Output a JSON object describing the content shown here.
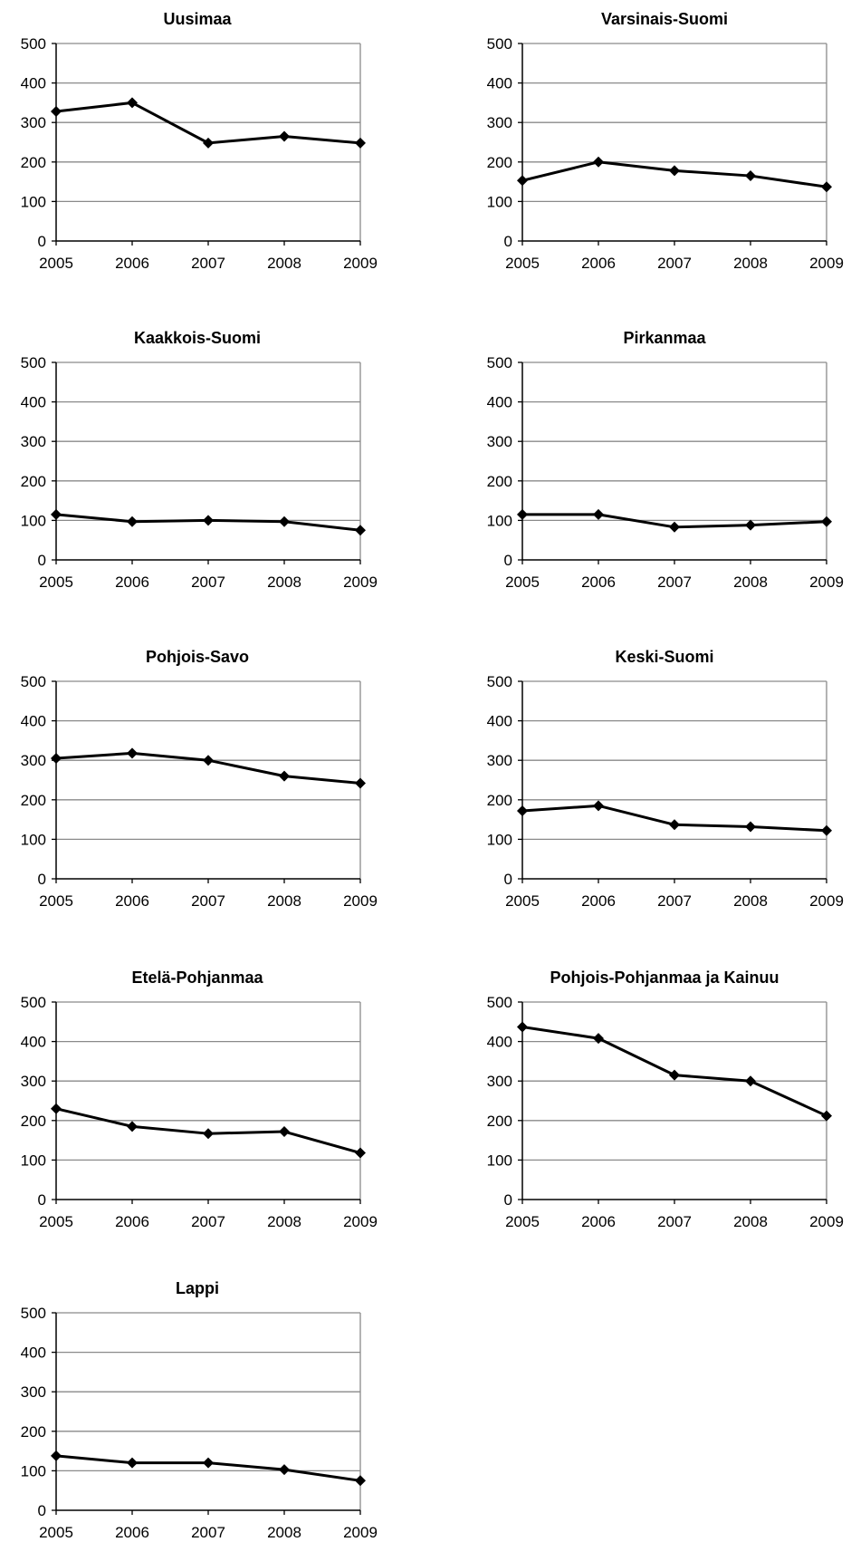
{
  "chart_data": [
    {
      "type": "line",
      "title": "Uusimaa",
      "x": [
        "2005",
        "2006",
        "2007",
        "2008",
        "2009"
      ],
      "series": [
        {
          "values": [
            328,
            350,
            248,
            265,
            248
          ],
          "color": "#000000"
        }
      ],
      "ylim": [
        0,
        500
      ],
      "yticks": [
        "0",
        "100",
        "200",
        "300",
        "400",
        "500"
      ],
      "grid": true,
      "marker": "diamond"
    },
    {
      "type": "line",
      "title": "Varsinais-Suomi",
      "x": [
        "2005",
        "2006",
        "2007",
        "2008",
        "2009"
      ],
      "series": [
        {
          "values": [
            153,
            200,
            178,
            165,
            137
          ],
          "color": "#000000"
        }
      ],
      "ylim": [
        0,
        500
      ],
      "yticks": [
        "0",
        "100",
        "200",
        "300",
        "400",
        "500"
      ],
      "grid": true,
      "marker": "diamond"
    },
    {
      "type": "line",
      "title": "Kaakkois-Suomi",
      "x": [
        "2005",
        "2006",
        "2007",
        "2008",
        "2009"
      ],
      "series": [
        {
          "values": [
            115,
            97,
            100,
            97,
            75
          ],
          "color": "#000000"
        }
      ],
      "ylim": [
        0,
        500
      ],
      "yticks": [
        "0",
        "100",
        "200",
        "300",
        "400",
        "500"
      ],
      "grid": true,
      "marker": "diamond"
    },
    {
      "type": "line",
      "title": "Pirkanmaa",
      "x": [
        "2005",
        "2006",
        "2007",
        "2008",
        "2009"
      ],
      "series": [
        {
          "values": [
            115,
            115,
            83,
            88,
            97
          ],
          "color": "#000000"
        }
      ],
      "ylim": [
        0,
        500
      ],
      "yticks": [
        "0",
        "100",
        "200",
        "300",
        "400",
        "500"
      ],
      "grid": true,
      "marker": "diamond"
    },
    {
      "type": "line",
      "title": "Pohjois-Savo",
      "x": [
        "2005",
        "2006",
        "2007",
        "2008",
        "2009"
      ],
      "series": [
        {
          "values": [
            305,
            318,
            300,
            260,
            242
          ],
          "color": "#000000"
        }
      ],
      "ylim": [
        0,
        500
      ],
      "yticks": [
        "0",
        "100",
        "200",
        "300",
        "400",
        "500"
      ],
      "grid": true,
      "marker": "diamond"
    },
    {
      "type": "line",
      "title": "Keski-Suomi",
      "x": [
        "2005",
        "2006",
        "2007",
        "2008",
        "2009"
      ],
      "series": [
        {
          "values": [
            172,
            185,
            137,
            132,
            122
          ],
          "color": "#000000"
        }
      ],
      "ylim": [
        0,
        500
      ],
      "yticks": [
        "0",
        "100",
        "200",
        "300",
        "400",
        "500"
      ],
      "grid": true,
      "marker": "diamond"
    },
    {
      "type": "line",
      "title": "Etelä-Pohjanmaa",
      "x": [
        "2005",
        "2006",
        "2007",
        "2008",
        "2009"
      ],
      "series": [
        {
          "values": [
            230,
            185,
            167,
            172,
            118
          ],
          "color": "#000000"
        }
      ],
      "ylim": [
        0,
        500
      ],
      "yticks": [
        "0",
        "100",
        "200",
        "300",
        "400",
        "500"
      ],
      "grid": true,
      "marker": "diamond"
    },
    {
      "type": "line",
      "title": "Pohjois-Pohjanmaa ja Kainuu",
      "x": [
        "2005",
        "2006",
        "2007",
        "2008",
        "2009"
      ],
      "series": [
        {
          "values": [
            437,
            408,
            315,
            300,
            212
          ],
          "color": "#000000"
        }
      ],
      "ylim": [
        0,
        500
      ],
      "yticks": [
        "0",
        "100",
        "200",
        "300",
        "400",
        "500"
      ],
      "grid": true,
      "marker": "diamond"
    },
    {
      "type": "line",
      "title": "Lappi",
      "x": [
        "2005",
        "2006",
        "2007",
        "2008",
        "2009"
      ],
      "series": [
        {
          "values": [
            138,
            120,
            120,
            103,
            75
          ],
          "color": "#000000"
        }
      ],
      "ylim": [
        0,
        500
      ],
      "yticks": [
        "0",
        "100",
        "200",
        "300",
        "400",
        "500"
      ],
      "grid": true,
      "marker": "diamond"
    }
  ]
}
